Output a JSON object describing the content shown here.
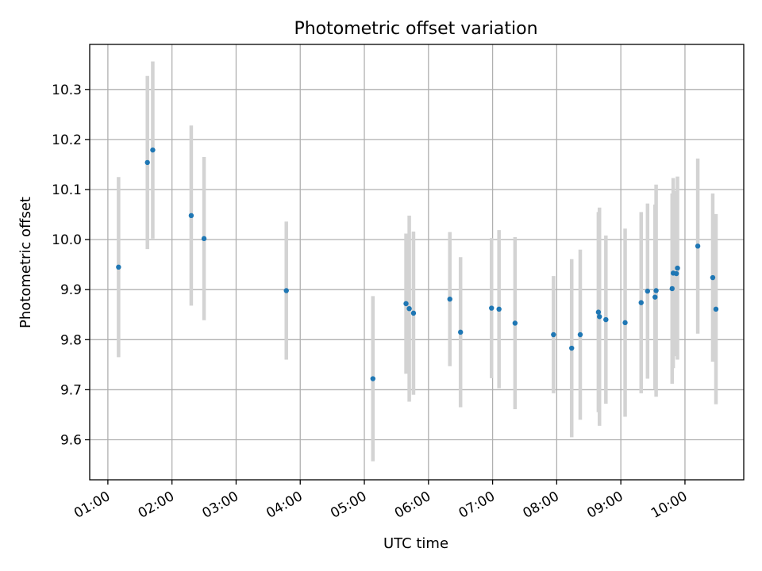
{
  "chart_data": {
    "type": "scatter",
    "title": "Photometric offset variation",
    "xlabel": "UTC time",
    "ylabel": "Photometric offset",
    "x_tick_labels": [
      "01:00",
      "02:00",
      "03:00",
      "04:00",
      "05:00",
      "06:00",
      "07:00",
      "08:00",
      "09:00",
      "10:00"
    ],
    "y_tick_labels": [
      "9.6",
      "9.7",
      "9.8",
      "9.9",
      "10.0",
      "10.1",
      "10.2",
      "10.3"
    ],
    "xlim": [
      "00:43",
      "10:55"
    ],
    "ylim": [
      9.52,
      10.39
    ],
    "grid": true,
    "colors": {
      "point": "#1f77b4",
      "errorbar": "#d3d3d3",
      "grid": "#b0b0b0"
    },
    "points": [
      {
        "time": "01:10",
        "y": 9.945,
        "yerr": 0.18
      },
      {
        "time": "01:37",
        "y": 10.154,
        "yerr": 0.173
      },
      {
        "time": "01:42",
        "y": 10.179,
        "yerr": 0.177
      },
      {
        "time": "02:18",
        "y": 10.048,
        "yerr": 0.18
      },
      {
        "time": "02:30",
        "y": 10.002,
        "yerr": 0.163
      },
      {
        "time": "03:47",
        "y": 9.898,
        "yerr": 0.138
      },
      {
        "time": "05:08",
        "y": 9.722,
        "yerr": 0.165
      },
      {
        "time": "05:39",
        "y": 9.872,
        "yerr": 0.14
      },
      {
        "time": "05:42",
        "y": 9.862,
        "yerr": 0.186
      },
      {
        "time": "05:46",
        "y": 9.853,
        "yerr": 0.163
      },
      {
        "time": "06:20",
        "y": 9.881,
        "yerr": 0.134
      },
      {
        "time": "06:30",
        "y": 9.815,
        "yerr": 0.15
      },
      {
        "time": "06:59",
        "y": 9.863,
        "yerr": 0.14
      },
      {
        "time": "07:06",
        "y": 9.861,
        "yerr": 0.158
      },
      {
        "time": "07:21",
        "y": 9.833,
        "yerr": 0.172
      },
      {
        "time": "07:57",
        "y": 9.81,
        "yerr": 0.117
      },
      {
        "time": "08:14",
        "y": 9.783,
        "yerr": 0.178
      },
      {
        "time": "08:22",
        "y": 9.81,
        "yerr": 0.17
      },
      {
        "time": "08:39",
        "y": 9.855,
        "yerr": 0.2
      },
      {
        "time": "08:40",
        "y": 9.846,
        "yerr": 0.218
      },
      {
        "time": "08:46",
        "y": 9.84,
        "yerr": 0.168
      },
      {
        "time": "09:04",
        "y": 9.834,
        "yerr": 0.188
      },
      {
        "time": "09:19",
        "y": 9.874,
        "yerr": 0.181
      },
      {
        "time": "09:25",
        "y": 9.897,
        "yerr": 0.175
      },
      {
        "time": "09:32",
        "y": 9.885,
        "yerr": 0.185
      },
      {
        "time": "09:33",
        "y": 9.898,
        "yerr": 0.212
      },
      {
        "time": "09:48",
        "y": 9.902,
        "yerr": 0.19
      },
      {
        "time": "09:49",
        "y": 9.933,
        "yerr": 0.19
      },
      {
        "time": "09:52",
        "y": 9.932,
        "yerr": 0.165
      },
      {
        "time": "09:53",
        "y": 9.943,
        "yerr": 0.183
      },
      {
        "time": "10:12",
        "y": 9.987,
        "yerr": 0.175
      },
      {
        "time": "10:26",
        "y": 9.924,
        "yerr": 0.168
      },
      {
        "time": "10:29",
        "y": 9.861,
        "yerr": 0.19
      }
    ]
  }
}
